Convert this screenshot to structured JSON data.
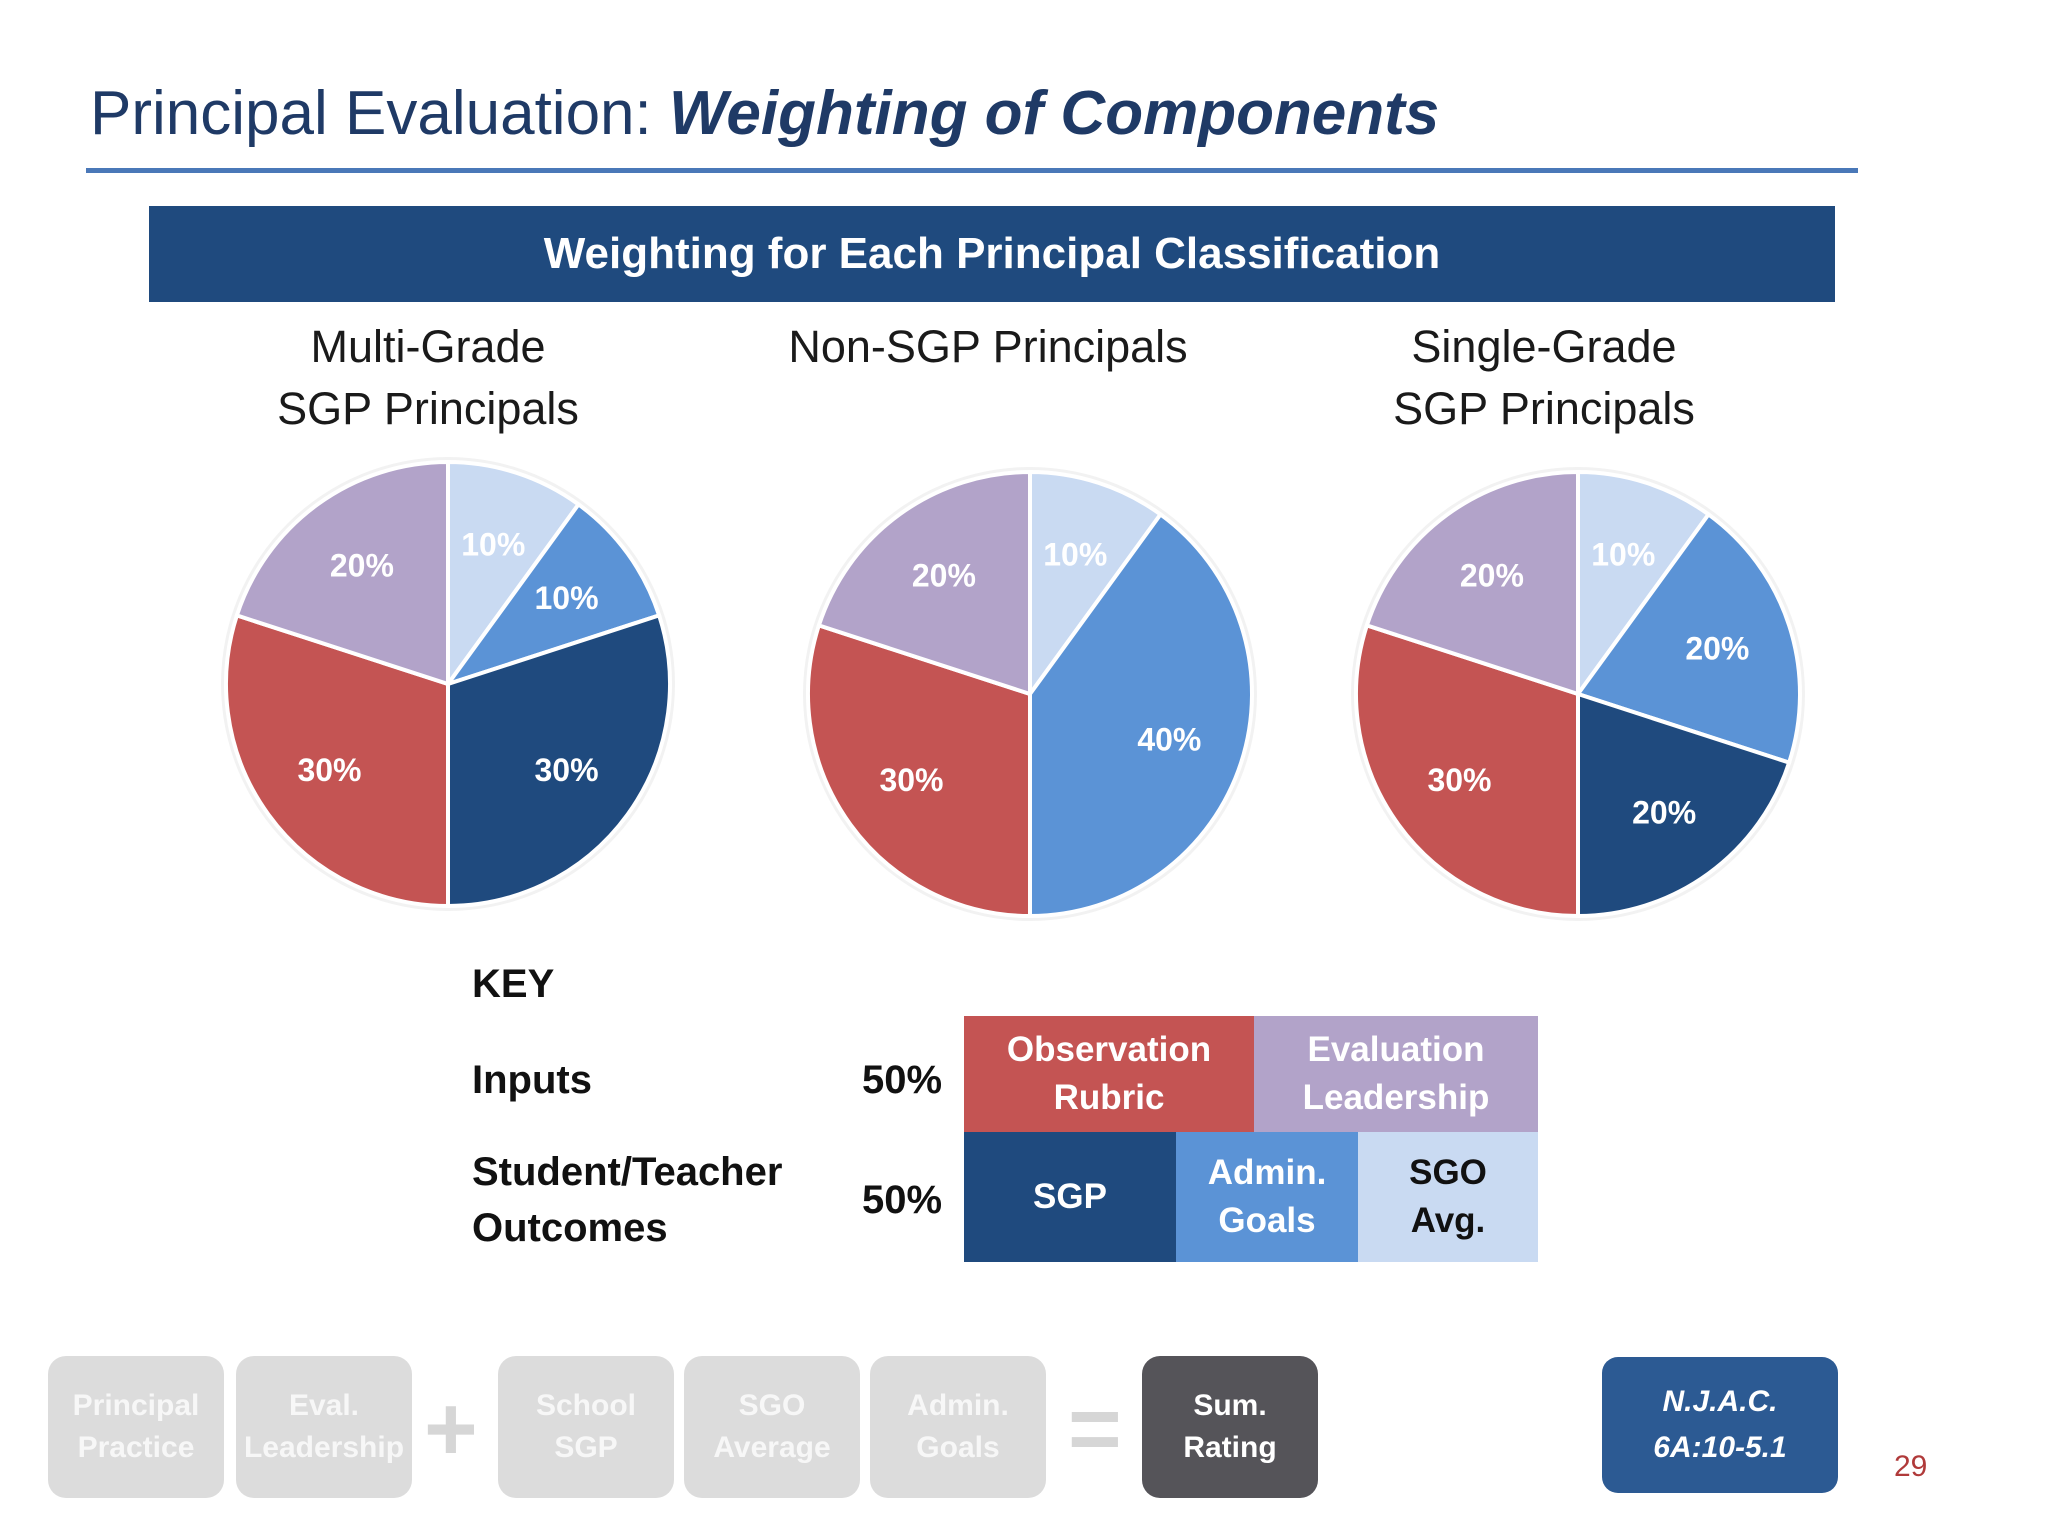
{
  "slide": {
    "title_plain": "Principal Evaluation: ",
    "title_emph": "Weighting of Components",
    "banner": "Weighting for Each Principal Classification",
    "page_number": "29"
  },
  "colors": {
    "observation_rubric": "#c45453",
    "evaluation_leadership": "#b2a3c9",
    "sgp": "#1f4a7e",
    "admin_goals": "#5b93d6",
    "sgo_avg": "#c9daf2"
  },
  "chart_data": [
    {
      "type": "pie",
      "title_line1": "Multi-Grade",
      "title_line2": "SGP Principals",
      "slices": [
        {
          "component": "SGO Avg.",
          "value": 10,
          "label": "10%",
          "color": "#c9daf2"
        },
        {
          "component": "Admin. Goals",
          "value": 10,
          "label": "10%",
          "color": "#5b93d6"
        },
        {
          "component": "SGP",
          "value": 30,
          "label": "30%",
          "color": "#1f4a7e"
        },
        {
          "component": "Observation Rubric",
          "value": 30,
          "label": "30%",
          "color": "#c45453"
        },
        {
          "component": "Evaluation Leadership",
          "value": 20,
          "label": "20%",
          "color": "#b2a3c9"
        }
      ]
    },
    {
      "type": "pie",
      "title_line1": "Non-SGP Principals",
      "title_line2": "",
      "slices": [
        {
          "component": "SGO Avg.",
          "value": 10,
          "label": "10%",
          "color": "#c9daf2"
        },
        {
          "component": "Admin. Goals",
          "value": 40,
          "label": "40%",
          "color": "#5b93d6"
        },
        {
          "component": "Observation Rubric",
          "value": 30,
          "label": "30%",
          "color": "#c45453"
        },
        {
          "component": "Evaluation Leadership",
          "value": 20,
          "label": "20%",
          "color": "#b2a3c9"
        }
      ]
    },
    {
      "type": "pie",
      "title_line1": "Single-Grade",
      "title_line2": "SGP Principals",
      "slices": [
        {
          "component": "SGO Avg.",
          "value": 10,
          "label": "10%",
          "color": "#c9daf2"
        },
        {
          "component": "Admin. Goals",
          "value": 20,
          "label": "20%",
          "color": "#5b93d6"
        },
        {
          "component": "SGP",
          "value": 20,
          "label": "20%",
          "color": "#1f4a7e"
        },
        {
          "component": "Observation Rubric",
          "value": 30,
          "label": "30%",
          "color": "#c45453"
        },
        {
          "component": "Evaluation Leadership",
          "value": 20,
          "label": "20%",
          "color": "#b2a3c9"
        }
      ]
    }
  ],
  "key": {
    "heading": "KEY",
    "inputs_label": "Inputs",
    "inputs_pct": "50%",
    "outcomes_label_line1": "Student/Teacher",
    "outcomes_label_line2": "Outcomes",
    "outcomes_pct": "50%",
    "observation_rubric_line1": "Observation",
    "observation_rubric_line2": "Rubric",
    "evaluation_leadership_line1": "Evaluation",
    "evaluation_leadership_line2": "Leadership",
    "sgp": "SGP",
    "admin_goals_line1": "Admin.",
    "admin_goals_line2": "Goals",
    "sgo_avg_line1": "SGO",
    "sgo_avg_line2": "Avg."
  },
  "formula": {
    "principal_practice_line1": "Principal",
    "principal_practice_line2": "Practice",
    "eval_leadership_line1": "Eval.",
    "eval_leadership_line2": "Leadership",
    "plus": "+",
    "school_sgp_line1": "School",
    "school_sgp_line2": "SGP",
    "sgo_average_line1": "SGO",
    "sgo_average_line2": "Average",
    "admin_goals_line1": "Admin.",
    "admin_goals_line2": "Goals",
    "equals": "=",
    "sum_rating_line1": "Sum.",
    "sum_rating_line2": "Rating"
  },
  "citation": {
    "line1": "N.J.A.C.",
    "line2": "6A:10-5.1"
  }
}
